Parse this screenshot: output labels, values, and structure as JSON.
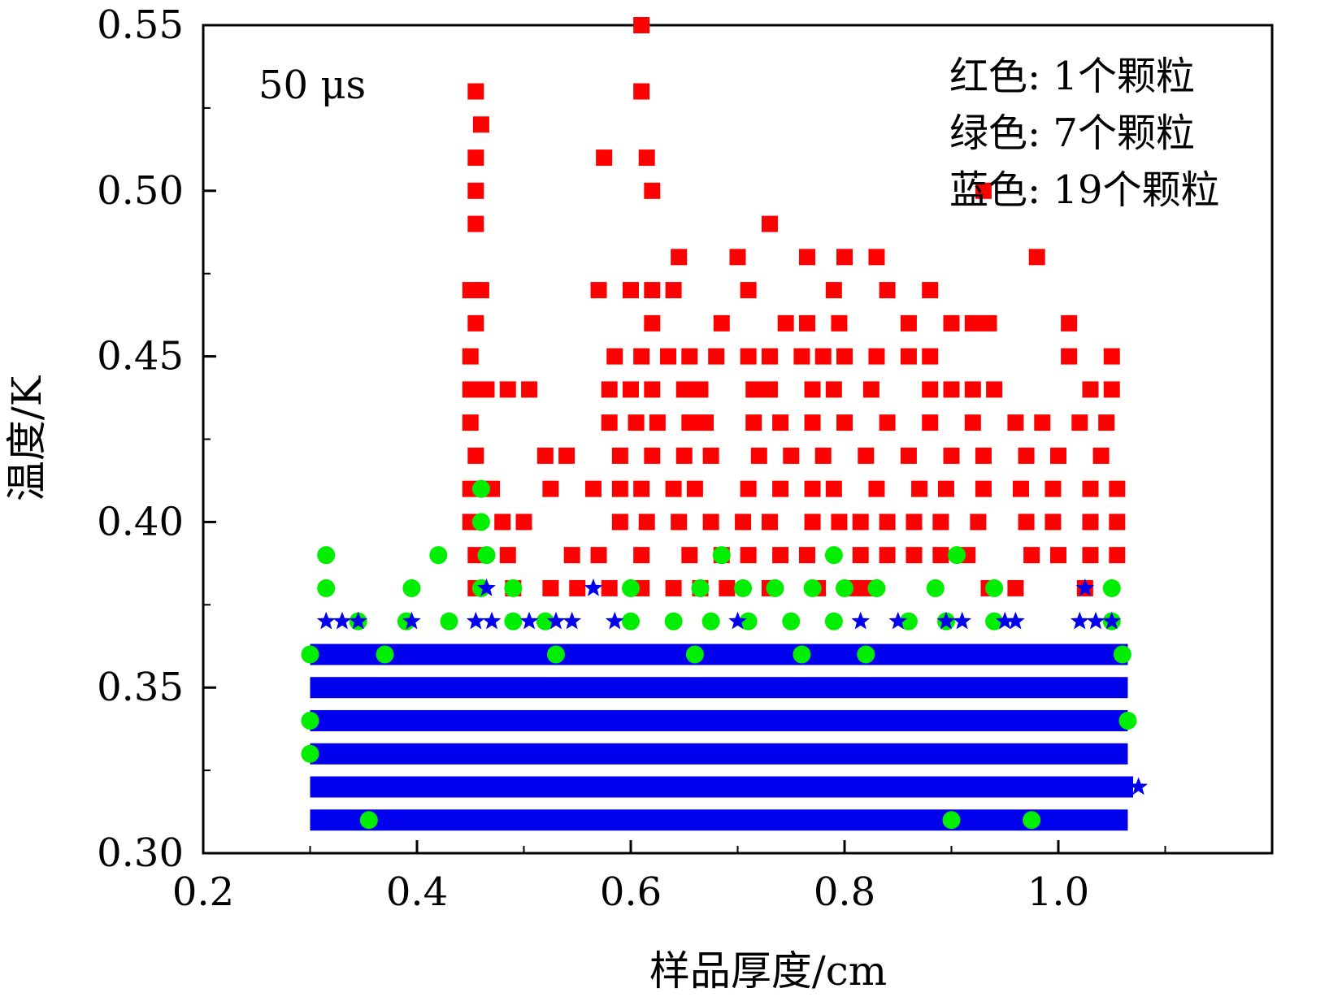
{
  "chart_data": {
    "type": "scatter",
    "annotation": "50 μs",
    "xlabel": "样品厚度/cm",
    "ylabel": "温度/K",
    "xlim": [
      0.2,
      1.2
    ],
    "ylim": [
      0.3,
      0.55
    ],
    "xticks": [
      0.2,
      0.4,
      0.6,
      0.8,
      1.0
    ],
    "xtick_labels": [
      "0.2",
      "0.4",
      "0.6",
      "0.8",
      "1.0"
    ],
    "yticks": [
      0.3,
      0.35,
      0.4,
      0.45,
      0.5,
      0.55
    ],
    "ytick_labels": [
      "0.30",
      "0.35",
      "0.40",
      "0.45",
      "0.50",
      "0.55"
    ],
    "grid": false,
    "legend": {
      "position": "top-right",
      "lines": [
        "红色: 1个颗粒",
        "绿色: 7个颗粒",
        "蓝色: 19个颗粒"
      ]
    },
    "series": [
      {
        "color": "#ff0000",
        "marker": "square",
        "points": [
          [
            0.61,
            0.55
          ],
          [
            0.455,
            0.53
          ],
          [
            0.61,
            0.53
          ],
          [
            0.46,
            0.52
          ],
          [
            0.455,
            0.51
          ],
          [
            0.575,
            0.51
          ],
          [
            0.615,
            0.51
          ],
          [
            0.455,
            0.5
          ],
          [
            0.62,
            0.5
          ],
          [
            0.455,
            0.49
          ],
          [
            0.73,
            0.49
          ],
          [
            0.645,
            0.48
          ],
          [
            0.7,
            0.48
          ],
          [
            0.765,
            0.48
          ],
          [
            0.8,
            0.48
          ],
          [
            0.83,
            0.48
          ],
          [
            0.98,
            0.48
          ],
          [
            0.45,
            0.47
          ],
          [
            0.46,
            0.47
          ],
          [
            0.57,
            0.47
          ],
          [
            0.6,
            0.47
          ],
          [
            0.62,
            0.47
          ],
          [
            0.64,
            0.47
          ],
          [
            0.71,
            0.47
          ],
          [
            0.79,
            0.47
          ],
          [
            0.84,
            0.47
          ],
          [
            0.88,
            0.47
          ],
          [
            0.455,
            0.46
          ],
          [
            0.62,
            0.46
          ],
          [
            0.685,
            0.46
          ],
          [
            0.745,
            0.46
          ],
          [
            0.765,
            0.46
          ],
          [
            0.795,
            0.46
          ],
          [
            0.86,
            0.46
          ],
          [
            0.9,
            0.46
          ],
          [
            0.92,
            0.46
          ],
          [
            0.935,
            0.46
          ],
          [
            1.01,
            0.46
          ],
          [
            0.45,
            0.45
          ],
          [
            0.585,
            0.45
          ],
          [
            0.61,
            0.45
          ],
          [
            0.635,
            0.45
          ],
          [
            0.655,
            0.45
          ],
          [
            0.68,
            0.45
          ],
          [
            0.71,
            0.45
          ],
          [
            0.73,
            0.45
          ],
          [
            0.76,
            0.45
          ],
          [
            0.78,
            0.45
          ],
          [
            0.8,
            0.45
          ],
          [
            0.83,
            0.45
          ],
          [
            0.86,
            0.45
          ],
          [
            0.88,
            0.45
          ],
          [
            1.01,
            0.45
          ],
          [
            1.05,
            0.45
          ],
          [
            0.45,
            0.44
          ],
          [
            0.465,
            0.44
          ],
          [
            0.485,
            0.44
          ],
          [
            0.505,
            0.44
          ],
          [
            0.58,
            0.44
          ],
          [
            0.6,
            0.44
          ],
          [
            0.62,
            0.44
          ],
          [
            0.65,
            0.44
          ],
          [
            0.665,
            0.44
          ],
          [
            0.715,
            0.44
          ],
          [
            0.73,
            0.44
          ],
          [
            0.77,
            0.44
          ],
          [
            0.79,
            0.44
          ],
          [
            0.825,
            0.44
          ],
          [
            0.88,
            0.44
          ],
          [
            0.9,
            0.44
          ],
          [
            0.92,
            0.44
          ],
          [
            0.94,
            0.44
          ],
          [
            1.03,
            0.44
          ],
          [
            1.05,
            0.44
          ],
          [
            0.45,
            0.43
          ],
          [
            0.58,
            0.43
          ],
          [
            0.605,
            0.43
          ],
          [
            0.625,
            0.43
          ],
          [
            0.655,
            0.43
          ],
          [
            0.67,
            0.43
          ],
          [
            0.715,
            0.43
          ],
          [
            0.74,
            0.43
          ],
          [
            0.77,
            0.43
          ],
          [
            0.8,
            0.43
          ],
          [
            0.84,
            0.43
          ],
          [
            0.88,
            0.43
          ],
          [
            0.92,
            0.43
          ],
          [
            0.96,
            0.43
          ],
          [
            0.985,
            0.43
          ],
          [
            1.02,
            0.43
          ],
          [
            1.045,
            0.43
          ],
          [
            0.455,
            0.42
          ],
          [
            0.52,
            0.42
          ],
          [
            0.54,
            0.42
          ],
          [
            0.59,
            0.42
          ],
          [
            0.62,
            0.42
          ],
          [
            0.65,
            0.42
          ],
          [
            0.675,
            0.42
          ],
          [
            0.72,
            0.42
          ],
          [
            0.75,
            0.42
          ],
          [
            0.78,
            0.42
          ],
          [
            0.82,
            0.42
          ],
          [
            0.86,
            0.42
          ],
          [
            0.9,
            0.42
          ],
          [
            0.93,
            0.42
          ],
          [
            0.97,
            0.42
          ],
          [
            1.0,
            0.42
          ],
          [
            1.04,
            0.42
          ],
          [
            0.45,
            0.41
          ],
          [
            0.47,
            0.41
          ],
          [
            0.525,
            0.41
          ],
          [
            0.565,
            0.41
          ],
          [
            0.59,
            0.41
          ],
          [
            0.61,
            0.41
          ],
          [
            0.64,
            0.41
          ],
          [
            0.66,
            0.41
          ],
          [
            0.71,
            0.41
          ],
          [
            0.74,
            0.41
          ],
          [
            0.77,
            0.41
          ],
          [
            0.79,
            0.41
          ],
          [
            0.83,
            0.41
          ],
          [
            0.87,
            0.41
          ],
          [
            0.895,
            0.41
          ],
          [
            0.93,
            0.41
          ],
          [
            0.965,
            0.41
          ],
          [
            0.995,
            0.41
          ],
          [
            1.03,
            0.41
          ],
          [
            1.055,
            0.41
          ],
          [
            0.45,
            0.4
          ],
          [
            0.48,
            0.4
          ],
          [
            0.5,
            0.4
          ],
          [
            0.59,
            0.4
          ],
          [
            0.615,
            0.4
          ],
          [
            0.645,
            0.4
          ],
          [
            0.675,
            0.4
          ],
          [
            0.705,
            0.4
          ],
          [
            0.73,
            0.4
          ],
          [
            0.77,
            0.4
          ],
          [
            0.795,
            0.4
          ],
          [
            0.815,
            0.4
          ],
          [
            0.84,
            0.4
          ],
          [
            0.865,
            0.4
          ],
          [
            0.89,
            0.4
          ],
          [
            0.925,
            0.4
          ],
          [
            0.97,
            0.4
          ],
          [
            0.995,
            0.4
          ],
          [
            1.03,
            0.4
          ],
          [
            1.055,
            0.4
          ],
          [
            0.455,
            0.39
          ],
          [
            0.485,
            0.39
          ],
          [
            0.545,
            0.39
          ],
          [
            0.57,
            0.39
          ],
          [
            0.61,
            0.39
          ],
          [
            0.655,
            0.39
          ],
          [
            0.685,
            0.39
          ],
          [
            0.71,
            0.39
          ],
          [
            0.74,
            0.39
          ],
          [
            0.765,
            0.39
          ],
          [
            0.815,
            0.39
          ],
          [
            0.84,
            0.39
          ],
          [
            0.865,
            0.39
          ],
          [
            0.89,
            0.39
          ],
          [
            0.915,
            0.39
          ],
          [
            0.975,
            0.39
          ],
          [
            1.0,
            0.39
          ],
          [
            1.03,
            0.39
          ],
          [
            1.055,
            0.39
          ],
          [
            0.455,
            0.38
          ],
          [
            0.49,
            0.38
          ],
          [
            0.525,
            0.38
          ],
          [
            0.55,
            0.38
          ],
          [
            0.58,
            0.38
          ],
          [
            0.61,
            0.38
          ],
          [
            0.64,
            0.38
          ],
          [
            0.665,
            0.38
          ],
          [
            0.69,
            0.38
          ],
          [
            0.73,
            0.38
          ],
          [
            0.775,
            0.38
          ],
          [
            0.805,
            0.38
          ],
          [
            0.82,
            0.38
          ],
          [
            0.935,
            0.38
          ],
          [
            0.96,
            0.38
          ],
          [
            1.025,
            0.38
          ],
          [
            0.93,
            0.5
          ]
        ]
      },
      {
        "color": "#00ee00",
        "marker": "circle",
        "points": [
          [
            0.46,
            0.41
          ],
          [
            0.46,
            0.4
          ],
          [
            0.315,
            0.39
          ],
          [
            0.42,
            0.39
          ],
          [
            0.465,
            0.39
          ],
          [
            0.685,
            0.39
          ],
          [
            0.79,
            0.39
          ],
          [
            0.905,
            0.39
          ],
          [
            0.315,
            0.38
          ],
          [
            0.395,
            0.38
          ],
          [
            0.46,
            0.38
          ],
          [
            0.49,
            0.38
          ],
          [
            0.6,
            0.38
          ],
          [
            0.665,
            0.38
          ],
          [
            0.705,
            0.38
          ],
          [
            0.735,
            0.38
          ],
          [
            0.77,
            0.38
          ],
          [
            0.8,
            0.38
          ],
          [
            0.83,
            0.38
          ],
          [
            0.885,
            0.38
          ],
          [
            0.94,
            0.38
          ],
          [
            1.05,
            0.38
          ],
          [
            0.345,
            0.37
          ],
          [
            0.39,
            0.37
          ],
          [
            0.43,
            0.37
          ],
          [
            0.49,
            0.37
          ],
          [
            0.52,
            0.37
          ],
          [
            0.6,
            0.37
          ],
          [
            0.64,
            0.37
          ],
          [
            0.675,
            0.37
          ],
          [
            0.71,
            0.37
          ],
          [
            0.75,
            0.37
          ],
          [
            0.79,
            0.37
          ],
          [
            0.86,
            0.37
          ],
          [
            0.895,
            0.37
          ],
          [
            0.94,
            0.37
          ],
          [
            1.05,
            0.37
          ],
          [
            0.3,
            0.36
          ],
          [
            0.37,
            0.36
          ],
          [
            0.53,
            0.36
          ],
          [
            0.66,
            0.36
          ],
          [
            0.76,
            0.36
          ],
          [
            0.82,
            0.36
          ],
          [
            1.06,
            0.36
          ],
          [
            0.3,
            0.34
          ],
          [
            1.065,
            0.34
          ],
          [
            0.3,
            0.33
          ],
          [
            0.355,
            0.31
          ],
          [
            0.9,
            0.31
          ],
          [
            0.975,
            0.31
          ]
        ]
      },
      {
        "color": "#0000ee",
        "marker": "star",
        "points": [
          [
            0.465,
            0.38
          ],
          [
            0.565,
            0.38
          ],
          [
            1.025,
            0.38
          ],
          [
            0.315,
            0.37
          ],
          [
            0.33,
            0.37
          ],
          [
            0.345,
            0.37
          ],
          [
            0.395,
            0.37
          ],
          [
            0.455,
            0.37
          ],
          [
            0.47,
            0.37
          ],
          [
            0.505,
            0.37
          ],
          [
            0.53,
            0.37
          ],
          [
            0.545,
            0.37
          ],
          [
            0.585,
            0.37
          ],
          [
            0.7,
            0.37
          ],
          [
            0.815,
            0.37
          ],
          [
            0.85,
            0.37
          ],
          [
            0.895,
            0.37
          ],
          [
            0.91,
            0.37
          ],
          [
            0.95,
            0.37
          ],
          [
            0.96,
            0.37
          ],
          [
            1.02,
            0.37
          ],
          [
            1.035,
            0.37
          ],
          [
            1.05,
            0.37
          ],
          [
            1.075,
            0.32
          ]
        ]
      }
    ],
    "dense_bands": [
      {
        "color": "#0000ee",
        "y": 0.36,
        "x": [
          0.3,
          1.065
        ]
      },
      {
        "color": "#0000ee",
        "y": 0.35,
        "x": [
          0.3,
          1.065
        ]
      },
      {
        "color": "#0000ee",
        "y": 0.34,
        "x": [
          0.3,
          1.065
        ]
      },
      {
        "color": "#0000ee",
        "y": 0.33,
        "x": [
          0.3,
          1.065
        ]
      },
      {
        "color": "#0000ee",
        "y": 0.32,
        "x": [
          0.3,
          1.07
        ]
      },
      {
        "color": "#0000ee",
        "y": 0.31,
        "x": [
          0.3,
          1.065
        ]
      }
    ]
  }
}
